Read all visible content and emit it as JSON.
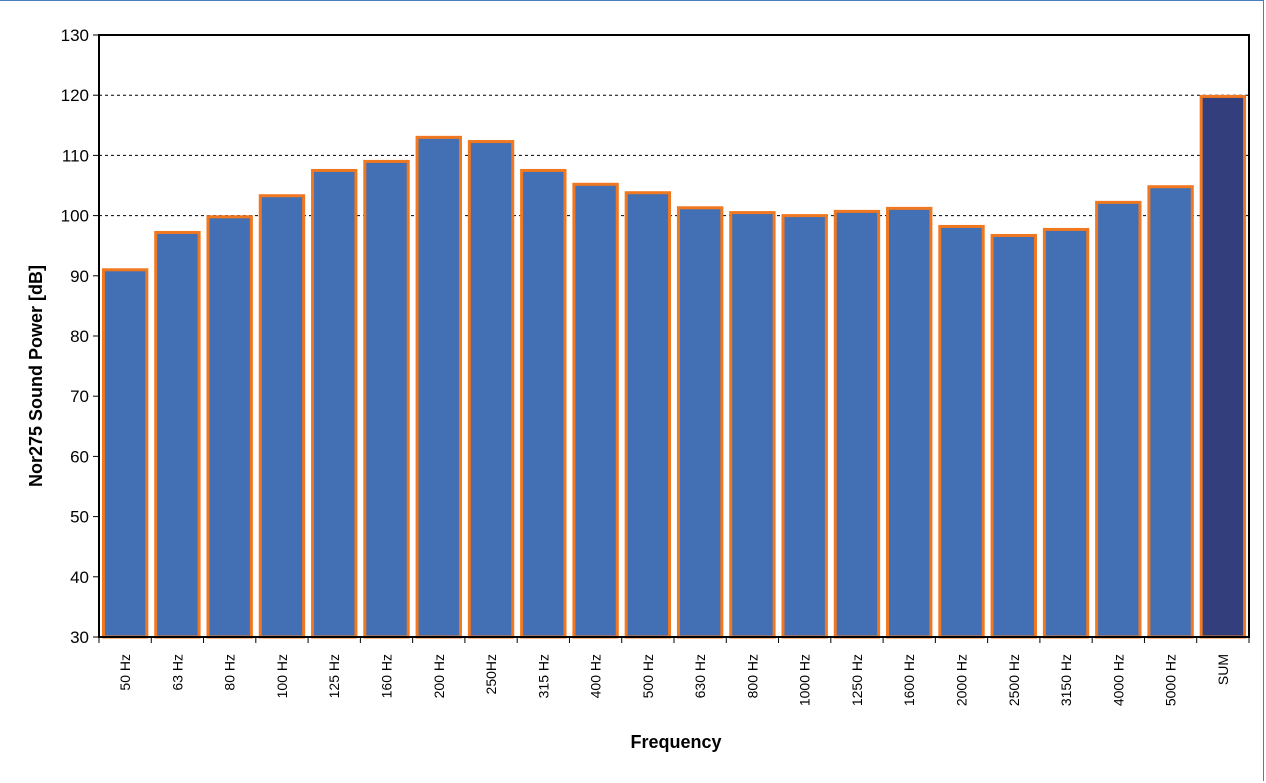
{
  "chart_data": {
    "type": "bar",
    "xlabel": "Frequency",
    "ylabel": "Nor275 Sound Power [dB]",
    "ylim": [
      30,
      130
    ],
    "yticks": [
      30,
      40,
      50,
      60,
      70,
      80,
      90,
      100,
      110,
      120,
      130
    ],
    "grid": "dashed horizontal at 100, 110, 120",
    "categories": [
      "50 Hz",
      "63 Hz",
      "80 Hz",
      "100 Hz",
      "125 Hz",
      "160 Hz",
      "200 Hz",
      "250Hz",
      "315 Hz",
      "400 Hz",
      "500 Hz",
      "630 Hz",
      "800 Hz",
      "1000 Hz",
      "1250 Hz",
      "1600 Hz",
      "2000 Hz",
      "2500 Hz",
      "3150 Hz",
      "4000 Hz",
      "5000 Hz",
      "SUM"
    ],
    "values": [
      91.0,
      97.2,
      99.8,
      103.3,
      107.5,
      109.0,
      113.0,
      112.3,
      107.5,
      105.2,
      103.8,
      101.3,
      100.5,
      100.0,
      100.7,
      101.2,
      98.2,
      96.7,
      97.7,
      102.2,
      104.8,
      119.8
    ],
    "colors": {
      "bar_fill": "#4370b4",
      "sum_fill": "#333f7d",
      "bar_edge": "#f07820"
    }
  }
}
